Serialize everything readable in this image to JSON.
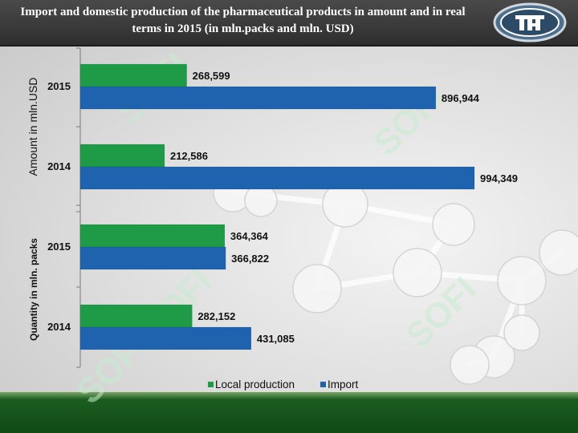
{
  "header": {
    "title": "Import and domestic production of the pharmaceutical products in amount and in real terms in 2015  (in mln.packs and mln. USD)"
  },
  "logo": {
    "icon": "sofi-logo-icon"
  },
  "watermark": {
    "text": "SOFI"
  },
  "colors": {
    "local": "#1f9b48",
    "import": "#1f62ad"
  },
  "chart_data": {
    "type": "bar",
    "orientation": "horizontal",
    "groups": [
      {
        "axis_label": "Amount in mln.USD",
        "categories": [
          "2015",
          "2014"
        ],
        "series": [
          {
            "name": "Local production",
            "values": [
              268.599,
              212.586
            ],
            "labels": [
              "268,599",
              "212,586"
            ]
          },
          {
            "name": "Import",
            "values": [
              896.944,
              994.349
            ],
            "labels": [
              "896,944",
              "994,349"
            ]
          }
        ]
      },
      {
        "axis_label": "Quantity in mln. packs",
        "categories": [
          "2015",
          "2014"
        ],
        "series": [
          {
            "name": "Local production",
            "values": [
              364.364,
              282.152
            ],
            "labels": [
              "364,364",
              "282,152"
            ]
          },
          {
            "name": "Import",
            "values": [
              366.822,
              431.085
            ],
            "labels": [
              "366,822",
              "431,085"
            ]
          }
        ]
      }
    ],
    "legend": [
      "Local production",
      "Import"
    ],
    "legend_position": "bottom",
    "grid": false
  }
}
